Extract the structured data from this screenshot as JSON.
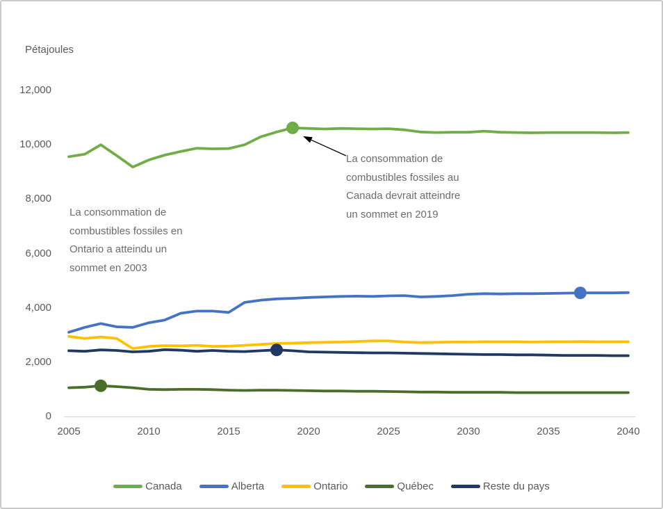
{
  "chart_data": {
    "type": "line",
    "title": "",
    "ylabel": "Pétajoules",
    "xlabel": "",
    "grid": false,
    "legend_position": "bottom",
    "x_range": [
      2005,
      2040
    ],
    "y_range": [
      0,
      12000
    ],
    "x": [
      2005,
      2006,
      2007,
      2008,
      2009,
      2010,
      2011,
      2012,
      2013,
      2014,
      2015,
      2016,
      2017,
      2018,
      2019,
      2020,
      2021,
      2022,
      2023,
      2024,
      2025,
      2026,
      2027,
      2028,
      2029,
      2030,
      2031,
      2032,
      2033,
      2034,
      2035,
      2036,
      2037,
      2038,
      2039,
      2040
    ],
    "y_ticks": [
      {
        "label": "12,000",
        "value": 12000
      },
      {
        "label": "10,000",
        "value": 10000
      },
      {
        "label": "8,000",
        "value": 8000
      },
      {
        "label": "6,000",
        "value": 6000
      },
      {
        "label": "4,000",
        "value": 4000
      },
      {
        "label": "2,000",
        "value": 2000
      },
      {
        "label": "0",
        "value": 0
      }
    ],
    "x_ticks": [
      {
        "label": "2005",
        "value": 2005
      },
      {
        "label": "2010",
        "value": 2010
      },
      {
        "label": "2015",
        "value": 2015
      },
      {
        "label": "2020",
        "value": 2020
      },
      {
        "label": "2025",
        "value": 2025
      },
      {
        "label": "2030",
        "value": 2030
      },
      {
        "label": "2035",
        "value": 2035
      },
      {
        "label": "2040",
        "value": 2040
      }
    ],
    "series": [
      {
        "name": "Canada",
        "color": "#70AD47",
        "values": [
          9560,
          9650,
          10000,
          9600,
          9180,
          9440,
          9620,
          9750,
          9870,
          9850,
          9860,
          10000,
          10290,
          10470,
          10620,
          10600,
          10580,
          10600,
          10590,
          10580,
          10590,
          10550,
          10470,
          10450,
          10460,
          10460,
          10500,
          10460,
          10450,
          10440,
          10450,
          10450,
          10450,
          10450,
          10440,
          10450
        ]
      },
      {
        "name": "Alberta",
        "color": "#4472C4",
        "values": [
          3100,
          3280,
          3420,
          3300,
          3280,
          3450,
          3550,
          3800,
          3880,
          3880,
          3830,
          4200,
          4280,
          4330,
          4350,
          4380,
          4400,
          4420,
          4430,
          4420,
          4440,
          4450,
          4400,
          4420,
          4450,
          4500,
          4520,
          4510,
          4520,
          4520,
          4530,
          4540,
          4550,
          4550,
          4550,
          4560
        ]
      },
      {
        "name": "Ontario",
        "color": "#FFC000",
        "values": [
          2950,
          2870,
          2930,
          2870,
          2500,
          2580,
          2610,
          2600,
          2620,
          2580,
          2590,
          2620,
          2650,
          2690,
          2700,
          2720,
          2730,
          2740,
          2760,
          2780,
          2780,
          2740,
          2720,
          2730,
          2740,
          2740,
          2750,
          2750,
          2750,
          2740,
          2750,
          2750,
          2760,
          2750,
          2750,
          2750
        ]
      },
      {
        "name": "Québec",
        "color": "#4A6D29",
        "values": [
          1060,
          1080,
          1130,
          1100,
          1060,
          1000,
          990,
          1000,
          1000,
          990,
          970,
          960,
          970,
          970,
          960,
          950,
          940,
          940,
          930,
          930,
          920,
          910,
          900,
          900,
          890,
          890,
          890,
          890,
          880,
          880,
          880,
          880,
          880,
          880,
          880,
          880
        ]
      },
      {
        "name": "Reste du pays",
        "color": "#203864",
        "values": [
          2420,
          2400,
          2450,
          2430,
          2380,
          2400,
          2460,
          2440,
          2400,
          2430,
          2400,
          2390,
          2420,
          2450,
          2420,
          2380,
          2370,
          2360,
          2350,
          2340,
          2340,
          2330,
          2320,
          2310,
          2300,
          2290,
          2280,
          2280,
          2270,
          2270,
          2260,
          2250,
          2250,
          2250,
          2240,
          2240
        ]
      }
    ],
    "peak_markers": [
      {
        "series": "Canada",
        "year": 2019,
        "value": 10620
      },
      {
        "series": "Alberta",
        "year": 2037,
        "value": 4550
      },
      {
        "series": "Reste du pays",
        "year": 2018,
        "value": 2450
      },
      {
        "series": "Québec",
        "year": 2007,
        "value": 1130
      }
    ],
    "annotations": [
      {
        "id": "ontario-peak",
        "text": "La consommation de\ncombustibles fossiles en\nOntario a atteindu un\nsommet en 2003"
      },
      {
        "id": "canada-peak",
        "text": "La consommation de\ncombustibles fossiles au\nCanada devrait atteindre\nun sommet en 2019",
        "arrow_to_series": "Canada",
        "arrow_to_year": 2019
      }
    ]
  },
  "colors": {
    "tick_text": "#595959",
    "annotation_text": "#6b6b6b",
    "axis_line": "#D9D9D9",
    "frame_border": "#C9C9C9",
    "background": "#FFFFFF",
    "arrow": "#000000"
  }
}
